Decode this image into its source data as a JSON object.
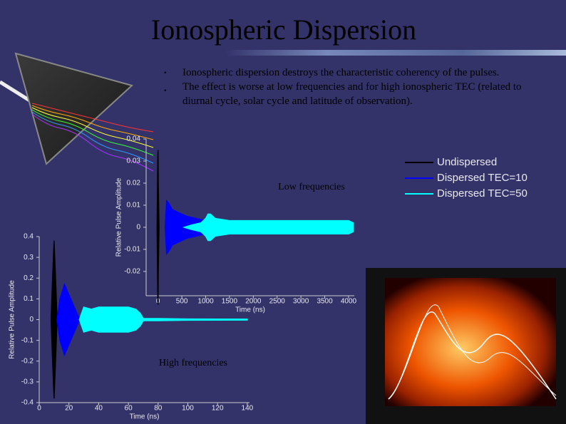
{
  "title": "Ionospheric Dispersion",
  "bullets": [
    "Ionospheric dispersion destroys the characteristic coherency of the pulses.",
    "The effect is worse at low frequencies and for high ionospheric TEC (related to diurnal cycle, solar cycle and latitude of observation)."
  ],
  "chart_data": [
    {
      "type": "area",
      "annotation": "Low frequencies",
      "xlabel": "Time (ns)",
      "ylabel": "Relative Pulse Amplitude",
      "xlim": [
        -250,
        4120
      ],
      "xticks": [
        0,
        500,
        1000,
        1500,
        2000,
        2500,
        3000,
        3500,
        4000
      ],
      "ylim": [
        -0.031,
        0.04
      ],
      "yticks": [
        0.04,
        0.03,
        0.02,
        0.01,
        0,
        -0.01,
        -0.02
      ],
      "legend": "upper right",
      "series": [
        {
          "name": "Undispersed",
          "color": "#000000",
          "x": [
            -20,
            -5,
            0,
            5,
            20
          ],
          "values": [
            0,
            0.033,
            0.035,
            0.02,
            0
          ]
        },
        {
          "name": "Dispersed TEC=10",
          "color": "#0000ff",
          "x": [
            150,
            180,
            220,
            300,
            400,
            500,
            600,
            700,
            800,
            900,
            1000,
            1100
          ],
          "values": [
            0,
            0.012,
            0.011,
            0.008,
            0.007,
            0.006,
            0.005,
            0.0045,
            0.004,
            0.0035,
            0.003,
            0.0025
          ]
        },
        {
          "name": "Dispersed TEC=50",
          "color": "#00ffff",
          "x": [
            550,
            700,
            900,
            1000,
            1050,
            1100,
            1200,
            1500,
            2000,
            2500,
            3000,
            3500,
            4000,
            4100
          ],
          "values": [
            0,
            0.001,
            0.002,
            0.004,
            0.006,
            0.006,
            0.004,
            0.003,
            0.003,
            0.003,
            0.003,
            0.003,
            0.003,
            0.002
          ]
        }
      ]
    },
    {
      "type": "area",
      "annotation": "High frequencies",
      "xlabel": "Time (ns)",
      "ylabel": "Relative Pulse Amplitude",
      "xlim": [
        0,
        141.5
      ],
      "xticks": [
        0,
        20,
        40,
        60,
        80,
        100,
        120,
        140
      ],
      "ylim": [
        -0.4,
        0.4
      ],
      "yticks": [
        0.4,
        0.3,
        0.2,
        0.1,
        0,
        -0.1,
        -0.2,
        -0.3,
        -0.4
      ],
      "series": [
        {
          "color": "#000000",
          "x": [
            8,
            9,
            10,
            11,
            12
          ],
          "values": [
            0,
            0.2,
            0.38,
            0.2,
            0
          ]
        },
        {
          "color": "#0000ff",
          "x": [
            12,
            14,
            17,
            20,
            23,
            26,
            28
          ],
          "values": [
            0,
            0.1,
            0.17,
            0.12,
            0.07,
            0.02,
            0
          ]
        },
        {
          "color": "#00ffff",
          "x": [
            27,
            30,
            35,
            40,
            45,
            50,
            55,
            60,
            65,
            68,
            70,
            80,
            100,
            140
          ],
          "values": [
            0,
            0.06,
            0.05,
            0.06,
            0.06,
            0.06,
            0.06,
            0.06,
            0.05,
            0.03,
            0.005,
            0.005,
            0.003,
            0.002
          ]
        }
      ]
    }
  ]
}
